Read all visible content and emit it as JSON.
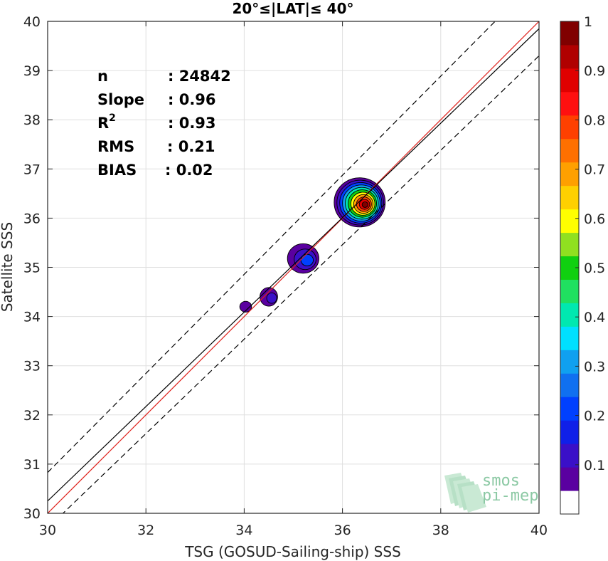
{
  "chart_data": {
    "type": "heatmap",
    "title": "20°≤|LAT|≤ 40°",
    "xlabel": "TSG (GOSUD-Sailing-ship) SSS",
    "ylabel": "Satellite SSS",
    "xlim": [
      30,
      40
    ],
    "ylim": [
      30,
      40
    ],
    "xticks": [
      30,
      32,
      34,
      36,
      38,
      40
    ],
    "yticks": [
      30,
      31,
      32,
      33,
      34,
      35,
      36,
      37,
      38,
      39,
      40
    ],
    "grid": true,
    "stats": [
      {
        "label": "n",
        "value": ": 24842"
      },
      {
        "label": "Slope",
        "value": ": 0.96"
      },
      {
        "label": "R",
        "sup": "2",
        "value": ": 0.93"
      },
      {
        "label": "RMS",
        "value": ": 0.21"
      },
      {
        "label": "BIAS",
        "value": ": 0.02"
      }
    ],
    "lines": [
      {
        "name": "identity",
        "color": "#e0201b",
        "style": "solid",
        "x": [
          30,
          40
        ],
        "y": [
          30,
          40
        ]
      },
      {
        "name": "regression",
        "color": "#000000",
        "style": "solid",
        "x": [
          30,
          40
        ],
        "y": [
          30.25,
          39.85
        ]
      },
      {
        "name": "upper-bound",
        "color": "#000000",
        "style": "dashed",
        "x": [
          30,
          40
        ],
        "y": [
          30.83,
          40.9
        ]
      },
      {
        "name": "lower-bound",
        "color": "#000000",
        "style": "dashed",
        "x": [
          30,
          40
        ],
        "y": [
          29.7,
          39.3
        ]
      }
    ],
    "density_blobs": [
      {
        "name": "peak-main",
        "x": 36.35,
        "y": 36.32,
        "rx": 0.52,
        "ry": 0.5,
        "levels": [
          0.05,
          0.1,
          0.2,
          0.3,
          0.4,
          0.5,
          0.6,
          0.7,
          0.8,
          0.9,
          1.0
        ]
      },
      {
        "name": "peak-35",
        "x": 35.2,
        "y": 35.18,
        "rx": 0.32,
        "ry": 0.3,
        "levels": [
          0.05,
          0.1,
          0.2
        ]
      },
      {
        "name": "peak-34-5",
        "x": 34.5,
        "y": 34.4,
        "rx": 0.18,
        "ry": 0.19,
        "levels": [
          0.05,
          0.1
        ]
      },
      {
        "name": "peak-34",
        "x": 34.03,
        "y": 34.2,
        "rx": 0.12,
        "ry": 0.11,
        "levels": [
          0.05
        ]
      }
    ],
    "colorbar": {
      "ticks": [
        "0.1",
        "0.2",
        "0.3",
        "0.4",
        "0.5",
        "0.6",
        "0.7",
        "0.8",
        "0.9",
        "1"
      ],
      "colors": [
        "#ffffff",
        "#5a00a0",
        "#3a10c8",
        "#1020e8",
        "#0040ff",
        "#1070f0",
        "#10a0f0",
        "#00e0ff",
        "#00e8b0",
        "#20e060",
        "#10d010",
        "#90e020",
        "#ffff00",
        "#ffd000",
        "#ffa000",
        "#ff7000",
        "#ff4000",
        "#ff1010",
        "#e00000",
        "#b00000",
        "#800000"
      ]
    },
    "watermark": {
      "line1": "smos",
      "line2": "pi-mep"
    }
  }
}
